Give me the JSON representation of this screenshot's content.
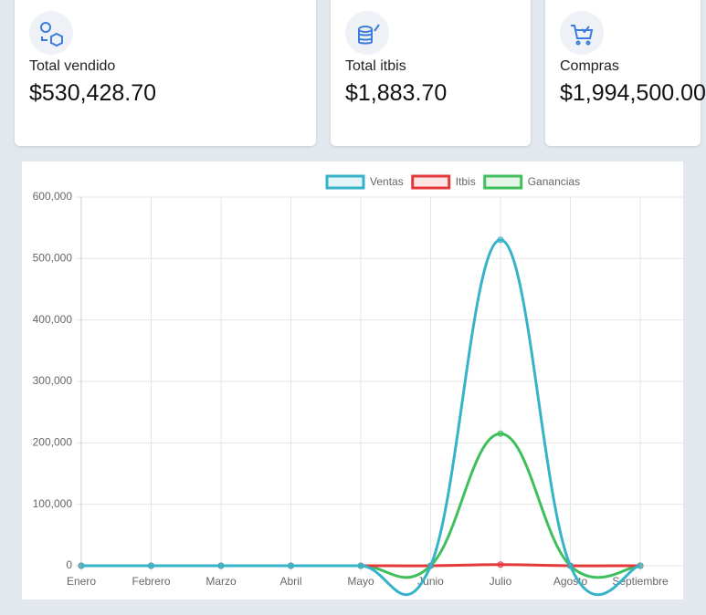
{
  "cards": [
    {
      "label": "Total vendido",
      "value": "$530,428.70"
    },
    {
      "label": "Total itbis",
      "value": "$1,883.70"
    },
    {
      "label": "Compras",
      "value": "$1,994,500.00"
    }
  ],
  "chart_data": {
    "type": "line",
    "categories": [
      "Enero",
      "Febrero",
      "Marzo",
      "Abril",
      "Mayo",
      "Junio",
      "Julio",
      "Agosto",
      "Septiembre"
    ],
    "series": [
      {
        "name": "Ventas",
        "color": "#36b3c9",
        "values": [
          0,
          0,
          0,
          0,
          0,
          0,
          530428.7,
          0,
          0
        ]
      },
      {
        "name": "Itbis",
        "color": "#e5383b",
        "values": [
          0,
          0,
          0,
          0,
          0,
          0,
          1883.7,
          0,
          0
        ]
      },
      {
        "name": "Ganancias",
        "color": "#3fbf5c",
        "values": [
          0,
          0,
          0,
          0,
          0,
          0,
          215000,
          0,
          0
        ]
      }
    ],
    "ylim": [
      0,
      600000
    ],
    "yticks": [
      0,
      {
        "value": 100000,
        "label": "100,000"
      },
      {
        "value": 200000,
        "label": "200,000"
      },
      {
        "value": 300000,
        "label": "300,000"
      },
      {
        "value": 400000,
        "label": "400,000"
      },
      {
        "value": 500000,
        "label": "500,000"
      },
      {
        "value": 600000,
        "label": "600,000"
      }
    ],
    "grid": true
  }
}
